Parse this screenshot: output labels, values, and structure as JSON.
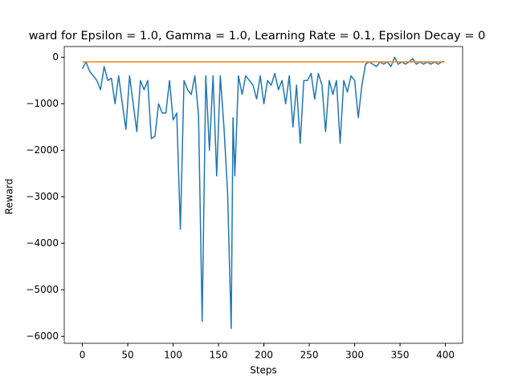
{
  "chart_data": {
    "type": "line",
    "title": "ward for Epsilon = 1.0, Gamma = 1.0, Learning Rate = 0.1, Epsilon Decay = 0",
    "x_label": "Steps",
    "y_label": "Reward",
    "xlim": [
      -19.95,
      418.95
    ],
    "ylim": [
      -6150,
      230
    ],
    "xticks": [
      0,
      50,
      100,
      150,
      200,
      250,
      300,
      350,
      400
    ],
    "yticks": [
      {
        "value": -6000,
        "label": "−6000"
      },
      {
        "value": -5000,
        "label": "−5000"
      },
      {
        "value": -4000,
        "label": "−4000"
      },
      {
        "value": -3000,
        "label": "−3000"
      },
      {
        "value": -2000,
        "label": "−2000"
      },
      {
        "value": -1000,
        "label": "−1000"
      },
      0
    ],
    "series": [
      {
        "color": "#1f77b4",
        "x": [
          0,
          4,
          8,
          12,
          16,
          20,
          24,
          28,
          32,
          36,
          40,
          44,
          48,
          52,
          56,
          60,
          64,
          68,
          72,
          76,
          80,
          84,
          88,
          92,
          96,
          100,
          104,
          108,
          112,
          116,
          120,
          124,
          128,
          132,
          136,
          140,
          144,
          148,
          152,
          156,
          160,
          164,
          166,
          168,
          172,
          176,
          180,
          184,
          188,
          192,
          196,
          200,
          204,
          208,
          212,
          216,
          220,
          224,
          228,
          232,
          236,
          240,
          244,
          248,
          252,
          256,
          260,
          264,
          268,
          272,
          276,
          280,
          284,
          288,
          292,
          296,
          300,
          304,
          308,
          312,
          316,
          320,
          324,
          328,
          332,
          336,
          340,
          344,
          348,
          352,
          356,
          360,
          364,
          368,
          372,
          376,
          380,
          384,
          388,
          392,
          396,
          399
        ],
        "values": [
          -250,
          -100,
          -300,
          -400,
          -500,
          -700,
          -200,
          -500,
          -450,
          -1000,
          -400,
          -1000,
          -1550,
          -400,
          -1000,
          -1600,
          -500,
          -700,
          -500,
          -1750,
          -1700,
          -1000,
          -1200,
          -1200,
          -500,
          -1350,
          -1200,
          -3700,
          -500,
          -700,
          -800,
          -400,
          -1250,
          -5680,
          -400,
          -2000,
          -400,
          -2550,
          -400,
          -1500,
          -2900,
          -5830,
          -1300,
          -2550,
          -400,
          -800,
          -400,
          -500,
          -600,
          -900,
          -400,
          -1000,
          -500,
          -600,
          -350,
          -700,
          -500,
          -1000,
          -400,
          -1500,
          -600,
          -1850,
          -500,
          -500,
          -350,
          -900,
          -350,
          -600,
          -1600,
          -500,
          -800,
          -500,
          -1850,
          -500,
          -750,
          -400,
          -500,
          -1300,
          -600,
          -150,
          -100,
          -150,
          -200,
          -100,
          -150,
          -100,
          -200,
          0,
          -150,
          -100,
          -150,
          -100,
          -30,
          -150,
          -100,
          -150,
          -100,
          -150,
          -100,
          -150,
          -100,
          -90
        ]
      },
      {
        "color": "#ff7f0e",
        "x": [
          0,
          399
        ],
        "values": [
          -100,
          -100
        ]
      }
    ]
  }
}
